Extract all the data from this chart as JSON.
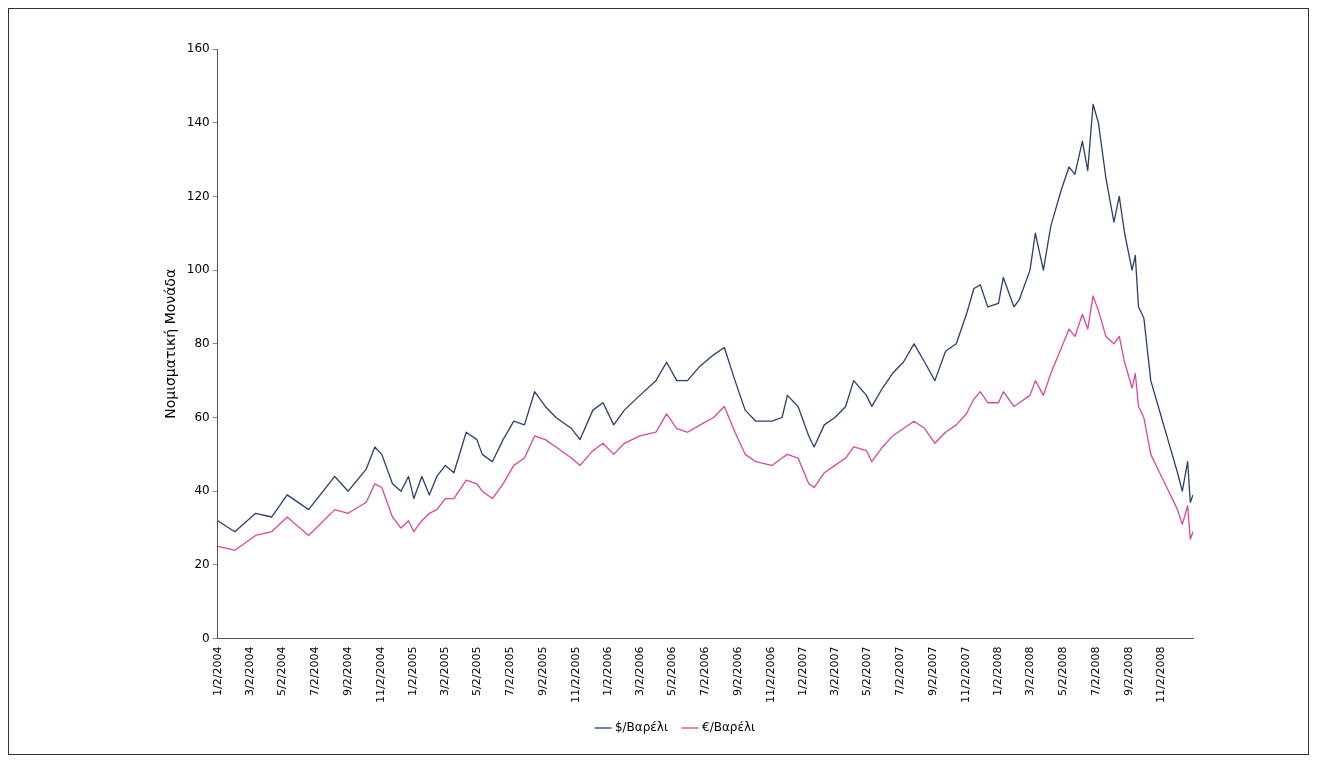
{
  "chart_data": {
    "type": "line",
    "ylabel": "Νομισματική Μονάδα",
    "x": [
      "2004-01-02",
      "2004-02-03",
      "2004-03-13",
      "2004-04-12",
      "2004-05-11",
      "2004-06-20",
      "2004-08-08",
      "2004-09-02",
      "2004-10-06",
      "2004-10-22",
      "2004-11-04",
      "2004-11-24",
      "2004-12-10",
      "2004-12-24",
      "2005-01-03",
      "2005-01-18",
      "2005-02-01",
      "2005-02-15",
      "2005-03-03",
      "2005-03-19",
      "2005-04-11",
      "2005-05-01",
      "2005-05-11",
      "2005-05-30",
      "2005-06-19",
      "2005-07-09",
      "2005-07-29",
      "2005-08-17",
      "2005-09-06",
      "2005-09-26",
      "2005-10-25",
      "2005-11-10",
      "2005-12-04",
      "2005-12-23",
      "2006-01-12",
      "2006-02-01",
      "2006-03-02",
      "2006-04-01",
      "2006-04-21",
      "2006-05-10",
      "2006-05-30",
      "2006-06-23",
      "2006-07-18",
      "2006-08-07",
      "2006-08-27",
      "2006-09-15",
      "2006-10-05",
      "2006-11-04",
      "2006-11-23",
      "2006-12-03",
      "2006-12-23",
      "2007-01-12",
      "2007-01-22",
      "2007-02-10",
      "2007-03-02",
      "2007-03-22",
      "2007-04-06",
      "2007-04-30",
      "2007-05-10",
      "2007-05-30",
      "2007-06-18",
      "2007-07-08",
      "2007-07-28",
      "2007-08-17",
      "2007-09-05",
      "2007-09-25",
      "2007-10-15",
      "2007-11-03",
      "2007-11-17",
      "2007-11-29",
      "2007-12-13",
      "2008-01-02",
      "2008-01-11",
      "2008-01-31",
      "2008-02-10",
      "2008-03-01",
      "2008-03-11",
      "2008-03-26",
      "2008-04-09",
      "2008-04-29",
      "2008-05-13",
      "2008-05-24",
      "2008-06-07",
      "2008-06-17",
      "2008-06-27",
      "2008-07-07",
      "2008-07-21",
      "2008-08-05",
      "2008-08-15",
      "2008-08-25",
      "2008-09-08",
      "2008-09-14",
      "2008-09-20",
      "2008-09-30",
      "2008-10-13",
      "2008-11-02",
      "2008-11-12",
      "2008-12-02",
      "2008-12-11",
      "2008-12-21",
      "2008-12-26",
      "2008-12-31"
    ],
    "series": [
      {
        "name": "$/Βαρέλι",
        "color": "#2b3f6b",
        "values": [
          32,
          29,
          34,
          33,
          39,
          35,
          44,
          40,
          46,
          52,
          50,
          42,
          40,
          44,
          38,
          44,
          39,
          44,
          47,
          45,
          56,
          54,
          50,
          48,
          54,
          59,
          58,
          67,
          63,
          60,
          57,
          54,
          62,
          64,
          58,
          62,
          66,
          70,
          75,
          70,
          70,
          74,
          77,
          79,
          70,
          62,
          59,
          59,
          60,
          66,
          63,
          55,
          52,
          58,
          60,
          63,
          70,
          66,
          63,
          68,
          72,
          75,
          80,
          75,
          70,
          78,
          80,
          88,
          95,
          96,
          90,
          91,
          98,
          90,
          92,
          100,
          110,
          100,
          112,
          122,
          128,
          126,
          135,
          127,
          145,
          140,
          125,
          113,
          120,
          110,
          100,
          104,
          90,
          87,
          70,
          60,
          55,
          45,
          40,
          48,
          37,
          39
        ]
      },
      {
        "name": "€/Βαρέλι",
        "color": "#d9479e",
        "values": [
          25,
          24,
          28,
          29,
          33,
          28,
          35,
          34,
          37,
          42,
          41,
          33,
          30,
          32,
          29,
          32,
          34,
          35,
          38,
          38,
          43,
          42,
          40,
          38,
          42,
          47,
          49,
          55,
          54,
          52,
          49,
          47,
          51,
          53,
          50,
          53,
          55,
          56,
          61,
          57,
          56,
          58,
          60,
          63,
          56,
          50,
          48,
          47,
          49,
          50,
          49,
          42,
          41,
          45,
          47,
          49,
          52,
          51,
          48,
          52,
          55,
          57,
          59,
          57,
          53,
          56,
          58,
          61,
          65,
          67,
          64,
          64,
          67,
          63,
          64,
          66,
          70,
          66,
          72,
          79,
          84,
          82,
          88,
          84,
          93,
          89,
          82,
          80,
          82,
          75,
          68,
          72,
          63,
          60,
          50,
          44,
          41,
          35,
          31,
          36,
          27,
          29
        ]
      }
    ],
    "xlim": [
      "2004-01-02",
      "2008-12-31"
    ],
    "xticks": [
      {
        "value": "2004-01-02",
        "label": "1/2/2004"
      },
      {
        "value": "2004-03-02",
        "label": "3/2/2004"
      },
      {
        "value": "2004-05-02",
        "label": "5/2/2004"
      },
      {
        "value": "2004-07-02",
        "label": "7/2/2004"
      },
      {
        "value": "2004-09-02",
        "label": "9/2/2004"
      },
      {
        "value": "2004-11-02",
        "label": "11/2/2004"
      },
      {
        "value": "2005-01-02",
        "label": "1/2/2005"
      },
      {
        "value": "2005-03-02",
        "label": "3/2/2005"
      },
      {
        "value": "2005-05-02",
        "label": "5/2/2005"
      },
      {
        "value": "2005-07-02",
        "label": "7/2/2005"
      },
      {
        "value": "2005-09-02",
        "label": "9/2/2005"
      },
      {
        "value": "2005-11-02",
        "label": "11/2/2005"
      },
      {
        "value": "2006-01-02",
        "label": "1/2/2006"
      },
      {
        "value": "2006-03-02",
        "label": "3/2/2006"
      },
      {
        "value": "2006-05-02",
        "label": "5/2/2006"
      },
      {
        "value": "2006-07-02",
        "label": "7/2/2006"
      },
      {
        "value": "2006-09-02",
        "label": "9/2/2006"
      },
      {
        "value": "2006-11-02",
        "label": "11/2/2006"
      },
      {
        "value": "2007-01-02",
        "label": "1/2/2007"
      },
      {
        "value": "2007-03-02",
        "label": "3/2/2007"
      },
      {
        "value": "2007-05-02",
        "label": "5/2/2007"
      },
      {
        "value": "2007-07-02",
        "label": "7/2/2007"
      },
      {
        "value": "2007-09-02",
        "label": "9/2/2007"
      },
      {
        "value": "2007-11-02",
        "label": "11/2/2007"
      },
      {
        "value": "2008-01-02",
        "label": "1/2/2008"
      },
      {
        "value": "2008-03-02",
        "label": "3/2/2008"
      },
      {
        "value": "2008-05-02",
        "label": "5/2/2008"
      },
      {
        "value": "2008-07-02",
        "label": "7/2/2008"
      },
      {
        "value": "2008-09-02",
        "label": "9/2/2008"
      },
      {
        "value": "2008-11-02",
        "label": "11/2/2008"
      }
    ],
    "ylim": [
      0,
      160
    ],
    "yticks": [
      0,
      20,
      40,
      60,
      80,
      100,
      120,
      140,
      160
    ],
    "grid": false,
    "legend": "bottom",
    "marker": "none",
    "line_style": "solid"
  }
}
